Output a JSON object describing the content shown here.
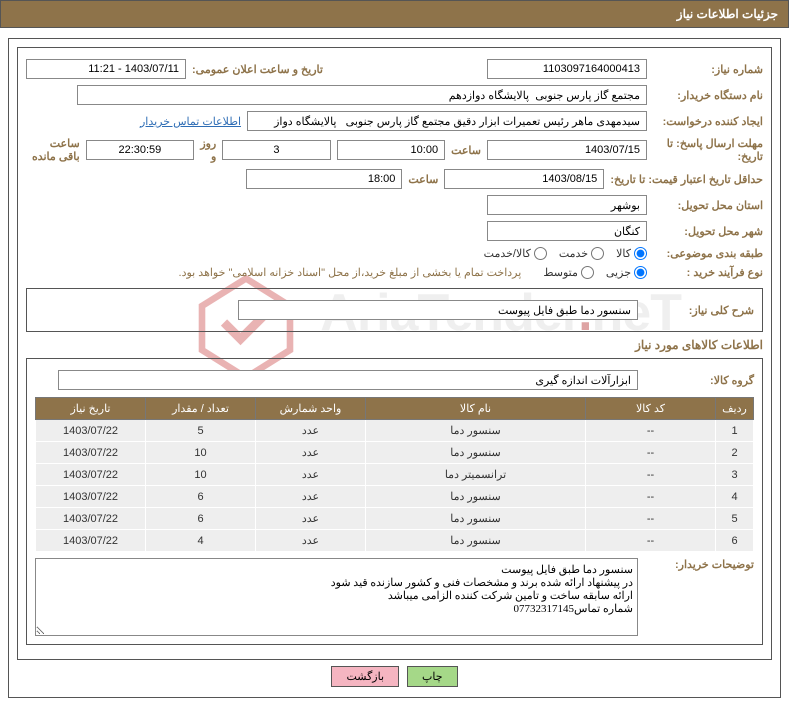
{
  "header_title": "جزئیات اطلاعات نیاز",
  "fields": {
    "number_label": "شماره نیاز:",
    "number_value": "1103097164000413",
    "announce_label": "تاریخ و ساعت اعلان عمومی:",
    "announce_value": "1403/07/11 - 11:21",
    "buyer_org_label": "نام دستگاه خریدار:",
    "buyer_org_value": "مجتمع گاز پارس جنوبی  پالایشگاه دوازدهم",
    "requester_label": "ایجاد کننده درخواست:",
    "requester_value": "سیدمهدی ماهر رئیس تعمیرات ابزار دقیق مجتمع گاز پارس جنوبی   پالایشگاه دواز",
    "contact_link": "اطلاعات تماس خریدار",
    "reply_deadline_label": "مهلت ارسال پاسخ: تا تاریخ:",
    "reply_date": "1403/07/15",
    "time_label": "ساعت",
    "reply_time": "10:00",
    "days_value": "3",
    "days_and": "روز و",
    "countdown": "22:30:59",
    "remaining": "ساعت باقی مانده",
    "price_valid_label": "حداقل تاریخ اعتبار قیمت: تا تاریخ:",
    "price_date": "1403/08/15",
    "price_time": "18:00",
    "province_label": "استان محل تحویل:",
    "province_value": "بوشهر",
    "city_label": "شهر محل تحویل:",
    "city_value": "کنگان",
    "category_label": "طبقه بندی موضوعی:",
    "cat_goods": "کالا",
    "cat_service": "خدمت",
    "cat_both": "کالا/خدمت",
    "buy_process_label": "نوع فرآیند خرید :",
    "proc_partial": "جزیی",
    "proc_medium": "متوسط",
    "payment_note": "پرداخت تمام یا بخشی از مبلغ خرید،از محل \"اسناد خزانه اسلامی\" خواهد بود.",
    "desc_label": "شرح کلی نیاز:",
    "desc_value": "سنسور دما طبق فایل پیوست",
    "goods_info_title": "اطلاعات کالاهای مورد نیاز",
    "goods_group_label": "گروه کالا:",
    "goods_group_value": "ابزارآلات اندازه گیری",
    "buyer_notes_label": "توضیحات خریدار:",
    "buyer_notes_value": "سنسور دما طبق فایل پیوست\nدر پیشنهاد ارائه شده برند و مشخصات فنی و کشور سازنده قید شود\nارائه سابقه ساخت و تامین شرکت کننده الزامی میباشد\nشماره تماس07732317145"
  },
  "table": {
    "columns": [
      "ردیف",
      "کد کالا",
      "نام کالا",
      "واحد شمارش",
      "تعداد / مقدار",
      "تاریخ نیاز"
    ],
    "rows": [
      [
        "1",
        "--",
        "سنسور دما",
        "عدد",
        "5",
        "1403/07/22"
      ],
      [
        "2",
        "--",
        "سنسور دما",
        "عدد",
        "10",
        "1403/07/22"
      ],
      [
        "3",
        "--",
        "ترانسمیتر دما",
        "عدد",
        "10",
        "1403/07/22"
      ],
      [
        "4",
        "--",
        "سنسور دما",
        "عدد",
        "6",
        "1403/07/22"
      ],
      [
        "5",
        "--",
        "سنسور دما",
        "عدد",
        "6",
        "1403/07/22"
      ],
      [
        "6",
        "--",
        "سنسور دما",
        "عدد",
        "4",
        "1403/07/22"
      ]
    ]
  },
  "buttons": {
    "print": "چاپ",
    "back": "بازگشت"
  },
  "watermark_text": "AriaTender",
  "watermark_dot": ".",
  "watermark_suffix": "neT"
}
